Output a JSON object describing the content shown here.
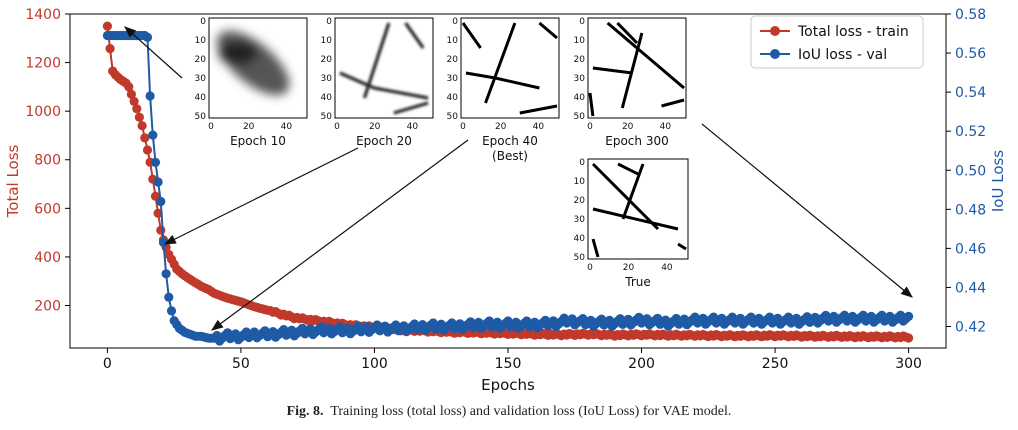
{
  "chart_data": {
    "type": "line",
    "x_range": [
      -14,
      314
    ],
    "x_ticks": [
      0,
      50,
      100,
      150,
      200,
      250,
      300
    ],
    "xlabel": "Epochs",
    "left_axis": {
      "label": "Total Loss",
      "range": [
        25,
        1400
      ],
      "ticks": [
        200,
        400,
        600,
        800,
        1000,
        1200,
        1400
      ],
      "color": "#c0392b"
    },
    "right_axis": {
      "label": "IoU Loss",
      "range": [
        0.409,
        0.58
      ],
      "ticks": [
        0.42,
        0.44,
        0.46,
        0.48,
        0.5,
        0.52,
        0.54,
        0.56,
        0.58
      ],
      "tick_labels": [
        "0.42",
        "0.44",
        "0.46",
        "0.48",
        "0.50",
        "0.52",
        "0.54",
        "0.56",
        "0.58"
      ],
      "color": "#1f5aa6"
    },
    "series": [
      {
        "name": "Total loss - train",
        "axis": "left",
        "color": "#c0392b",
        "x": [
          0,
          2,
          3,
          5,
          7,
          8,
          9,
          10,
          11,
          12,
          13,
          14,
          15,
          16,
          17,
          18,
          19,
          20,
          21,
          22,
          23,
          24,
          25,
          26,
          28,
          30,
          32,
          35,
          38,
          40,
          45,
          50,
          55,
          60,
          65,
          70,
          80,
          90,
          100,
          110,
          120,
          130,
          140,
          150,
          160,
          170,
          180,
          190,
          200,
          210,
          220,
          230,
          240,
          250,
          260,
          270,
          280,
          290,
          300
        ],
        "y": [
          1350,
          1165,
          1150,
          1130,
          1115,
          1100,
          1070,
          1040,
          1010,
          975,
          940,
          890,
          840,
          790,
          720,
          650,
          580,
          510,
          470,
          440,
          410,
          390,
          370,
          350,
          330,
          315,
          300,
          280,
          265,
          250,
          230,
          215,
          195,
          180,
          165,
          150,
          135,
          120,
          110,
          100,
          95,
          90,
          88,
          85,
          82,
          80,
          82,
          78,
          80,
          78,
          77,
          76,
          75,
          76,
          74,
          73,
          72,
          71,
          70
        ]
      },
      {
        "name": "IoU loss - val",
        "axis": "right",
        "color": "#1f5aa6",
        "x": [
          0,
          2,
          4,
          6,
          8,
          10,
          12,
          14,
          15,
          16,
          17,
          18,
          19,
          20,
          21,
          22,
          23,
          24,
          25,
          27,
          29,
          31,
          33,
          35,
          38,
          40,
          45,
          50,
          55,
          60,
          70,
          80,
          90,
          100,
          110,
          120,
          130,
          140,
          150,
          160,
          170,
          172,
          180,
          190,
          200,
          210,
          220,
          230,
          240,
          250,
          260,
          270,
          280,
          290,
          300
        ],
        "y": [
          0.569,
          0.569,
          0.569,
          0.569,
          0.569,
          0.569,
          0.569,
          0.569,
          0.568,
          0.538,
          0.518,
          0.504,
          0.494,
          0.484,
          0.463,
          0.447,
          0.435,
          0.428,
          0.423,
          0.419,
          0.417,
          0.416,
          0.415,
          0.415,
          0.414,
          0.414,
          0.415,
          0.415,
          0.416,
          0.416,
          0.417,
          0.418,
          0.418,
          0.419,
          0.419,
          0.42,
          0.42,
          0.421,
          0.421,
          0.421,
          0.422,
          0.423,
          0.422,
          0.422,
          0.423,
          0.422,
          0.423,
          0.423,
          0.423,
          0.423,
          0.423,
          0.424,
          0.424,
          0.424,
          0.424
        ]
      }
    ],
    "legend": {
      "placement": "top-right"
    },
    "insets": [
      {
        "label": "Epoch 10",
        "sublabel": "",
        "style": "blur",
        "ticks_x": [
          "0",
          "20",
          "40"
        ],
        "ticks_y": [
          "0",
          "10",
          "20",
          "30",
          "40",
          "50"
        ]
      },
      {
        "label": "Epoch 20",
        "sublabel": "",
        "style": "gray",
        "ticks_x": [
          "0",
          "20",
          "40"
        ],
        "ticks_y": [
          "0",
          "10",
          "20",
          "30",
          "40",
          "50"
        ]
      },
      {
        "label": "Epoch 40",
        "sublabel": "(Best)",
        "style": "sharp",
        "ticks_x": [
          "0",
          "20",
          "40"
        ],
        "ticks_y": [
          "0",
          "10",
          "20",
          "30",
          "40",
          "50"
        ]
      },
      {
        "label": "Epoch 300",
        "sublabel": "",
        "style": "sharp",
        "ticks_x": [
          "0",
          "20",
          "40"
        ],
        "ticks_y": [
          "0",
          "10",
          "20",
          "30",
          "40",
          "50"
        ]
      },
      {
        "label": "True",
        "sublabel": "",
        "style": "sharp",
        "ticks_x": [
          "0",
          "20",
          "40"
        ],
        "ticks_y": [
          "0",
          "10",
          "20",
          "30",
          "40",
          "50"
        ]
      }
    ]
  },
  "caption": {
    "label": "Fig. 8.",
    "text": "Training loss (total loss) and validation loss (IoU Loss) for VAE model."
  }
}
